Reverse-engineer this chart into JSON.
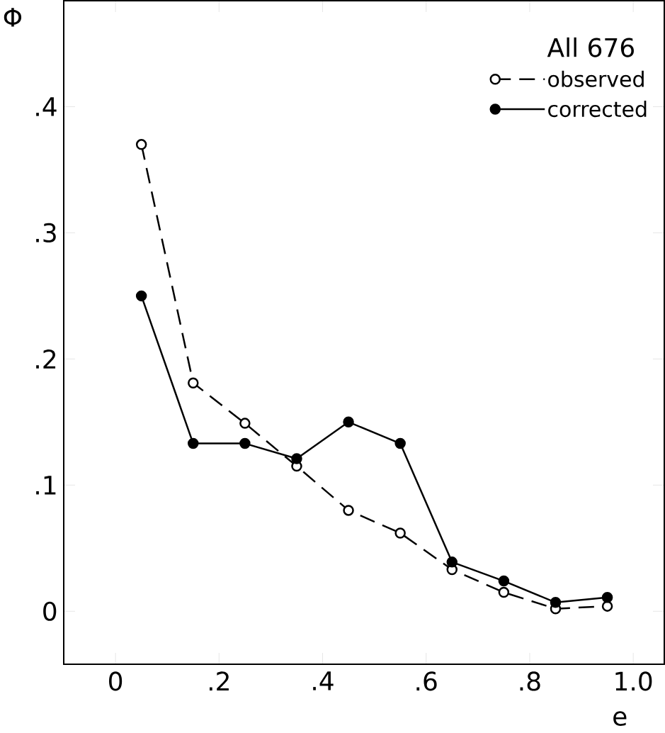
{
  "chart_data": {
    "type": "line",
    "xlabel": "e",
    "ylabel": "Φ",
    "legend_title": "All 676",
    "legend": "top right",
    "x": [
      0.05,
      0.15,
      0.25,
      0.35,
      0.45,
      0.55,
      0.65,
      0.75,
      0.85,
      0.95
    ],
    "series": [
      {
        "name": "observed",
        "color": "#000000",
        "marker": "circle",
        "line_style": "dashed",
        "values": [
          0.37,
          0.181,
          0.149,
          0.115,
          0.08,
          0.062,
          0.033,
          0.015,
          0.002,
          0.004
        ]
      },
      {
        "name": "corrected",
        "color": "#000000",
        "marker": "circle",
        "line_style": "solid",
        "values": [
          0.25,
          0.133,
          0.133,
          0.121,
          0.15,
          0.133,
          0.039,
          0.024,
          0.007,
          0.011
        ]
      }
    ],
    "xlim": [
      -0.1,
      1.06
    ],
    "ylim": [
      -0.042,
      0.484
    ],
    "xticks": [
      0,
      {
        "value": 0.2,
        "label": ".2"
      },
      {
        "value": 0.4,
        "label": ".4"
      },
      {
        "value": 0.6,
        "label": ".6"
      },
      {
        "value": 0.8,
        "label": ".8"
      },
      {
        "value": 1.0,
        "label": "1.0"
      }
    ],
    "yticks": [
      0,
      {
        "value": 0.1,
        "label": ".1"
      },
      {
        "value": 0.2,
        "label": ".2"
      },
      {
        "value": 0.3,
        "label": ".3"
      },
      {
        "value": 0.4,
        "label": ".4"
      }
    ],
    "grid": false
  }
}
